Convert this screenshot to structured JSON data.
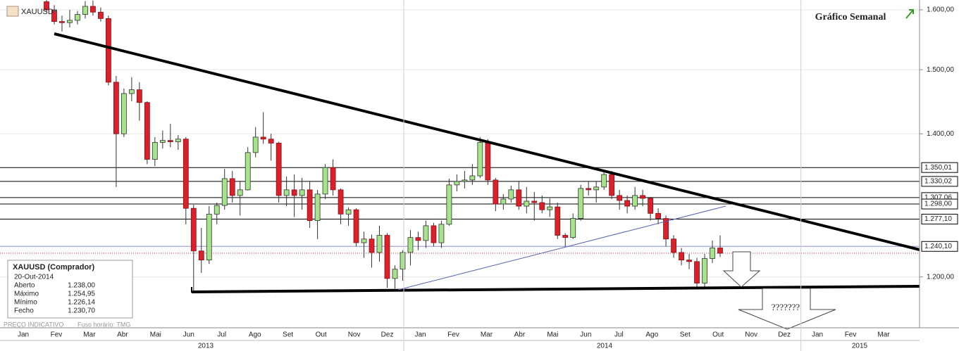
{
  "chart_data": {
    "type": "candlestick",
    "title": "Gráfico Semanal",
    "symbol": "XAUUSD",
    "log_scale": true,
    "ylim": [
      1136,
      1617
    ],
    "yticks": [
      {
        "value": 1200,
        "label": "1.200,00"
      },
      {
        "value": 1400,
        "label": "1.400,00"
      },
      {
        "value": 1500,
        "label": "1.500,00"
      },
      {
        "value": 1600,
        "label": "1.600,00"
      }
    ],
    "levels": [
      {
        "value": 1350.01,
        "label": "1.350,01"
      },
      {
        "value": 1330.02,
        "label": "1.330,02"
      },
      {
        "value": 1307.06,
        "label": "1.307,06"
      },
      {
        "value": 1298.0,
        "label": "1.298,00"
      },
      {
        "value": 1277.1,
        "label": "1.277,10"
      }
    ],
    "price_line": {
      "value": 1240.1,
      "label": "1.240,10"
    },
    "up_color": "#a6e38a",
    "down_color": "#d9202b",
    "months": [
      "Jan",
      "Fev",
      "Mar",
      "Abr",
      "Mai",
      "Jun",
      "Jul",
      "Ago",
      "Set",
      "Out",
      "Nov",
      "Dez",
      "Jan",
      "Fev",
      "Mar",
      "Abr",
      "Mai",
      "Jun",
      "Jul",
      "Ago",
      "Set",
      "Out",
      "Nov",
      "Dez",
      "Jan",
      "Fev",
      "Mar"
    ],
    "years": [
      "2013",
      "2014",
      "2015"
    ],
    "annotation": "???????",
    "footer": "PREÇO INDICATIVO",
    "timezone": "Fuso horário: TMG",
    "info": {
      "title": "XAUUSD (Comprador)",
      "date": "20-Out-2014",
      "rows": [
        [
          "Aberto",
          "1.238,00"
        ],
        [
          "Máximo",
          "1.254,95"
        ],
        [
          "Mínimo",
          "1.226,14"
        ],
        [
          "Fecho",
          "1.230,70"
        ]
      ]
    },
    "ohlc": [
      [
        1614,
        1620,
        1596,
        1600
      ],
      [
        1600,
        1608,
        1575,
        1580
      ],
      [
        1580,
        1590,
        1563,
        1578
      ],
      [
        1578,
        1600,
        1570,
        1582
      ],
      [
        1582,
        1598,
        1575,
        1592
      ],
      [
        1592,
        1615,
        1585,
        1606
      ],
      [
        1606,
        1616,
        1590,
        1596
      ],
      [
        1596,
        1604,
        1580,
        1585
      ],
      [
        1585,
        1590,
        1475,
        1480
      ],
      [
        1480,
        1490,
        1322,
        1400
      ],
      [
        1400,
        1470,
        1395,
        1462
      ],
      [
        1462,
        1488,
        1450,
        1468
      ],
      [
        1468,
        1480,
        1420,
        1448
      ],
      [
        1448,
        1450,
        1355,
        1362
      ],
      [
        1362,
        1395,
        1352,
        1387
      ],
      [
        1387,
        1405,
        1378,
        1390
      ],
      [
        1390,
        1415,
        1380,
        1388
      ],
      [
        1388,
        1398,
        1376,
        1392
      ],
      [
        1392,
        1395,
        1270,
        1292
      ],
      [
        1292,
        1297,
        1180,
        1234
      ],
      [
        1234,
        1265,
        1205,
        1222
      ],
      [
        1222,
        1295,
        1217,
        1284
      ],
      [
        1284,
        1300,
        1270,
        1296
      ],
      [
        1296,
        1348,
        1290,
        1334
      ],
      [
        1334,
        1345,
        1300,
        1310
      ],
      [
        1310,
        1330,
        1282,
        1318
      ],
      [
        1318,
        1380,
        1317,
        1372
      ],
      [
        1372,
        1410,
        1365,
        1395
      ],
      [
        1395,
        1433,
        1385,
        1392
      ],
      [
        1392,
        1400,
        1360,
        1386
      ],
      [
        1386,
        1388,
        1300,
        1310
      ],
      [
        1310,
        1337,
        1295,
        1318
      ],
      [
        1318,
        1340,
        1280,
        1310
      ],
      [
        1310,
        1335,
        1290,
        1318
      ],
      [
        1318,
        1330,
        1265,
        1275
      ],
      [
        1275,
        1318,
        1250,
        1312
      ],
      [
        1312,
        1355,
        1305,
        1350
      ],
      [
        1350,
        1362,
        1310,
        1318
      ],
      [
        1318,
        1320,
        1270,
        1284
      ],
      [
        1284,
        1293,
        1268,
        1290
      ],
      [
        1290,
        1292,
        1240,
        1245
      ],
      [
        1245,
        1260,
        1225,
        1250
      ],
      [
        1250,
        1256,
        1212,
        1232
      ],
      [
        1232,
        1268,
        1220,
        1255
      ],
      [
        1255,
        1258,
        1186,
        1198
      ],
      [
        1198,
        1215,
        1185,
        1210
      ],
      [
        1210,
        1235,
        1195,
        1232
      ],
      [
        1232,
        1262,
        1215,
        1252
      ],
      [
        1252,
        1260,
        1235,
        1248
      ],
      [
        1248,
        1275,
        1238,
        1268
      ],
      [
        1268,
        1272,
        1240,
        1245
      ],
      [
        1245,
        1275,
        1238,
        1270
      ],
      [
        1270,
        1334,
        1268,
        1325
      ],
      [
        1325,
        1340,
        1316,
        1330
      ],
      [
        1330,
        1345,
        1320,
        1332
      ],
      [
        1332,
        1355,
        1325,
        1338
      ],
      [
        1338,
        1395,
        1335,
        1387
      ],
      [
        1387,
        1392,
        1325,
        1332
      ],
      [
        1332,
        1335,
        1288,
        1298
      ],
      [
        1298,
        1312,
        1290,
        1305
      ],
      [
        1305,
        1324,
        1300,
        1318
      ],
      [
        1318,
        1330,
        1290,
        1295
      ],
      [
        1295,
        1322,
        1285,
        1302
      ],
      [
        1302,
        1315,
        1275,
        1300
      ],
      [
        1300,
        1310,
        1285,
        1290
      ],
      [
        1290,
        1306,
        1280,
        1294
      ],
      [
        1294,
        1300,
        1250,
        1255
      ],
      [
        1255,
        1258,
        1240,
        1252
      ],
      [
        1252,
        1285,
        1250,
        1278
      ],
      [
        1278,
        1325,
        1275,
        1320
      ],
      [
        1320,
        1330,
        1310,
        1318
      ],
      [
        1318,
        1330,
        1300,
        1322
      ],
      [
        1322,
        1345,
        1318,
        1340
      ],
      [
        1340,
        1345,
        1305,
        1310
      ],
      [
        1310,
        1318,
        1290,
        1303
      ],
      [
        1303,
        1310,
        1285,
        1295
      ],
      [
        1295,
        1322,
        1290,
        1310
      ],
      [
        1310,
        1318,
        1295,
        1306
      ],
      [
        1306,
        1308,
        1275,
        1285
      ],
      [
        1285,
        1292,
        1270,
        1278
      ],
      [
        1278,
        1282,
        1240,
        1250
      ],
      [
        1250,
        1255,
        1225,
        1232
      ],
      [
        1232,
        1238,
        1215,
        1222
      ],
      [
        1222,
        1230,
        1210,
        1220
      ],
      [
        1220,
        1225,
        1185,
        1192
      ],
      [
        1192,
        1230,
        1185,
        1224
      ],
      [
        1224,
        1248,
        1218,
        1238
      ],
      [
        1238,
        1255,
        1226,
        1231
      ]
    ]
  }
}
